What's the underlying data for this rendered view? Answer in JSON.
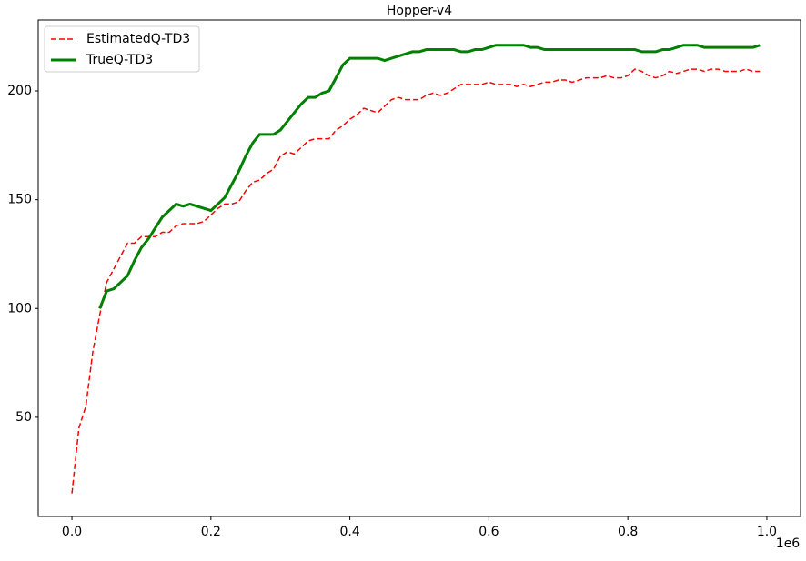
{
  "chart_data": {
    "type": "line",
    "title": "Hopper-v4",
    "x_offset_label": "1e6",
    "x": [
      0,
      0.01,
      0.02,
      0.03,
      0.04,
      0.05,
      0.06,
      0.07,
      0.08,
      0.09,
      0.1,
      0.11,
      0.12,
      0.13,
      0.14,
      0.15,
      0.16,
      0.17,
      0.18,
      0.19,
      0.2,
      0.21,
      0.22,
      0.23,
      0.24,
      0.25,
      0.26,
      0.27,
      0.28,
      0.29,
      0.3,
      0.31,
      0.32,
      0.33,
      0.34,
      0.35,
      0.36,
      0.37,
      0.38,
      0.39,
      0.4,
      0.41,
      0.42,
      0.43,
      0.44,
      0.45,
      0.46,
      0.47,
      0.48,
      0.49,
      0.5,
      0.51,
      0.52,
      0.53,
      0.54,
      0.55,
      0.56,
      0.57,
      0.58,
      0.59,
      0.6,
      0.61,
      0.62,
      0.63,
      0.64,
      0.65,
      0.66,
      0.67,
      0.68,
      0.69,
      0.7,
      0.71,
      0.72,
      0.73,
      0.74,
      0.75,
      0.76,
      0.77,
      0.78,
      0.79,
      0.8,
      0.81,
      0.82,
      0.83,
      0.84,
      0.85,
      0.86,
      0.87,
      0.88,
      0.89,
      0.9,
      0.91,
      0.92,
      0.93,
      0.94,
      0.95,
      0.96,
      0.97,
      0.98,
      0.99
    ],
    "series": [
      {
        "name": "EstimatedQ-TD3",
        "color": "#ff0000",
        "dash": true,
        "width": 1.5,
        "values": [
          15,
          45,
          55,
          80,
          97,
          112,
          118,
          124,
          130,
          130,
          133,
          133,
          133,
          135,
          135,
          138,
          139,
          139,
          139,
          140,
          143,
          146,
          148,
          148,
          149,
          154,
          158,
          159,
          162,
          164,
          170,
          172,
          171,
          174,
          177,
          178,
          178,
          178,
          182,
          184,
          187,
          189,
          192,
          191,
          190,
          193,
          196,
          197,
          196,
          196,
          196,
          198,
          199,
          198,
          199,
          201,
          203,
          203,
          203,
          203,
          204,
          203,
          203,
          203,
          202,
          203,
          202,
          203,
          204,
          204,
          205,
          205,
          204,
          205,
          206,
          206,
          206,
          207,
          206,
          206,
          207,
          210,
          209,
          207,
          206,
          207,
          209,
          208,
          209,
          210,
          210,
          209,
          210,
          210,
          209,
          209,
          209,
          210,
          209,
          209
        ]
      },
      {
        "name": "TrueQ-TD3",
        "color": "#008000",
        "dash": false,
        "width": 3,
        "values": [
          null,
          null,
          null,
          null,
          100,
          108,
          109,
          112,
          115,
          122,
          128,
          132,
          137,
          142,
          145,
          148,
          147,
          148,
          147,
          146,
          145,
          148,
          151,
          157,
          163,
          170,
          176,
          180,
          180,
          180,
          182,
          186,
          190,
          194,
          197,
          197,
          199,
          200,
          206,
          212,
          215,
          215,
          215,
          215,
          215,
          214,
          215,
          216,
          217,
          218,
          218,
          219,
          219,
          219,
          219,
          219,
          218,
          218,
          219,
          219,
          220,
          221,
          221,
          221,
          221,
          221,
          220,
          220,
          219,
          219,
          219,
          219,
          219,
          219,
          219,
          219,
          219,
          219,
          219,
          219,
          219,
          219,
          218,
          218,
          218,
          219,
          219,
          220,
          221,
          221,
          221,
          220,
          220,
          220,
          220,
          220,
          220,
          220,
          220,
          221
        ]
      }
    ],
    "xlim": [
      -0.0485,
      1.0485
    ],
    "ylim": [
      4.4,
      232.6
    ],
    "xticks": [
      {
        "value": 0,
        "label": "0.0"
      },
      {
        "value": 0.2,
        "label": "0.2"
      },
      {
        "value": 0.4,
        "label": "0.4"
      },
      {
        "value": 0.6,
        "label": "0.6"
      },
      {
        "value": 0.8,
        "label": "0.8"
      },
      {
        "value": 1,
        "label": "1.0"
      }
    ],
    "yticks": [
      50,
      100,
      150,
      200
    ],
    "legend": "upper-left"
  }
}
